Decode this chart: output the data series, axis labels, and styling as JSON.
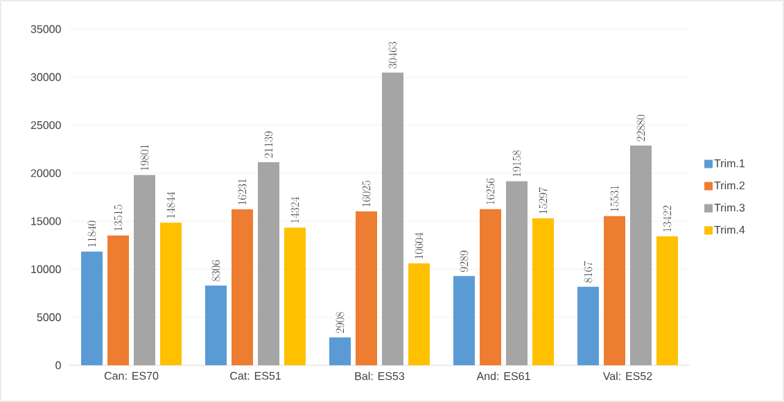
{
  "chart_data": {
    "type": "bar",
    "categories": [
      "Can: ES70",
      "Cat: ES51",
      "Bal: ES53",
      "And: ES61",
      "Val: ES52"
    ],
    "series": [
      {
        "name": "Trim.1",
        "color": "#5b9bd5",
        "values": [
          11840,
          8306,
          2908,
          9289,
          8167
        ]
      },
      {
        "name": "Trim.2",
        "color": "#ed7d31",
        "values": [
          13515,
          16231,
          16025,
          16256,
          15531
        ]
      },
      {
        "name": "Trim.3",
        "color": "#a5a5a5",
        "values": [
          19801,
          21139,
          30463,
          19158,
          22880
        ]
      },
      {
        "name": "Trim.4",
        "color": "#ffc000",
        "values": [
          14844,
          14324,
          10604,
          15297,
          13422
        ]
      }
    ],
    "ylim": [
      0,
      35000
    ],
    "yticks": [
      0,
      5000,
      10000,
      15000,
      20000,
      25000,
      30000,
      35000
    ],
    "grid": "y",
    "legend": "right",
    "data_labels": true
  }
}
